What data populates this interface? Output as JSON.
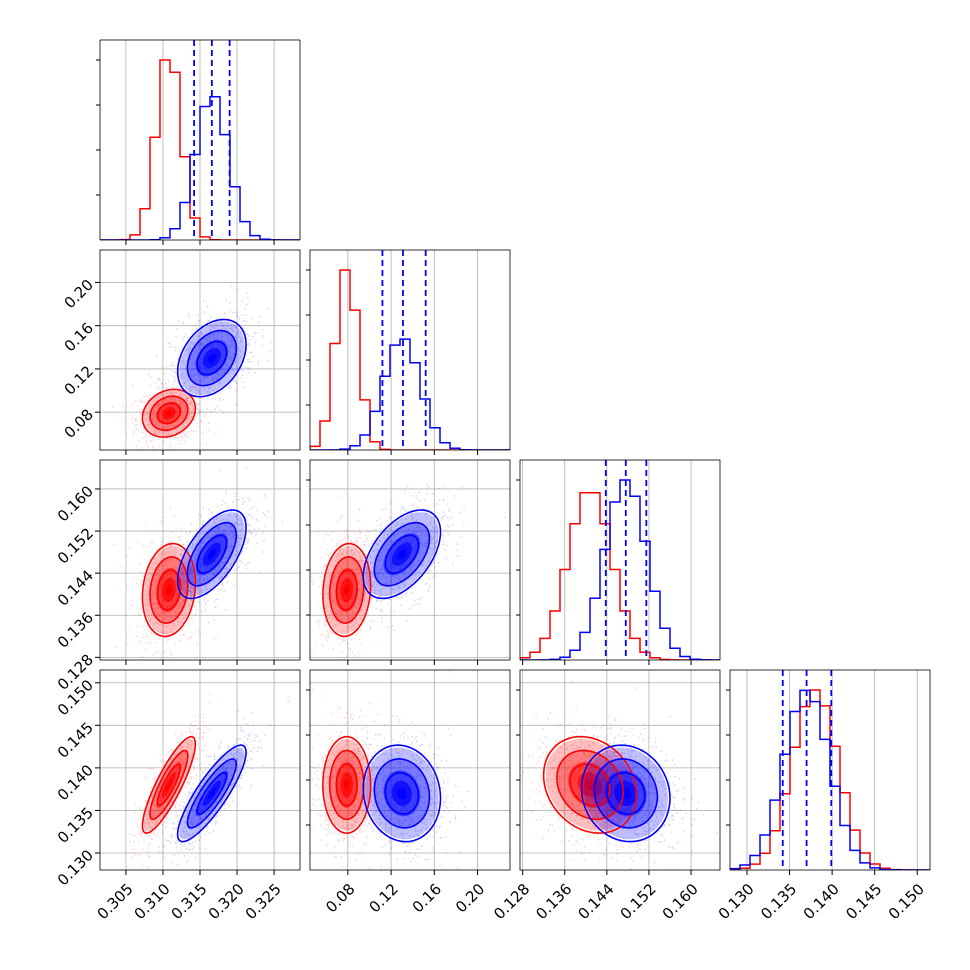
{
  "chart_data": {
    "type": "corner",
    "grid": true,
    "colors": {
      "red": "#ff0000",
      "blue": "#0000ff",
      "grid": "#b0b0b0"
    },
    "parameters": [
      {
        "ticks": [
          "0.305",
          "0.310",
          "0.315",
          "0.320",
          "0.325"
        ],
        "range": [
          0.3015,
          0.3285
        ]
      },
      {
        "ticks": [
          "0.08",
          "0.12",
          "0.16",
          "0.20"
        ],
        "range": [
          0.045,
          0.23
        ]
      },
      {
        "ticks": [
          "0.128",
          "0.136",
          "0.144",
          "0.152",
          "0.160"
        ],
        "range": [
          0.1275,
          0.1655
        ]
      },
      {
        "ticks": [
          "0.130",
          "0.135",
          "0.140",
          "0.145",
          "0.150"
        ],
        "range": [
          0.128,
          0.1515
        ]
      }
    ],
    "series": [
      {
        "color": "red",
        "mean": [
          0.3108,
          0.079,
          0.1408,
          0.138
        ],
        "sd": [
          0.0017,
          0.0105,
          0.0042,
          0.0027
        ],
        "corr": {
          "1-0": 0.2,
          "2-0": 0.15,
          "2-1": 0.1,
          "3-0": 0.85,
          "3-1": 0.0,
          "3-2": -0.2
        }
      },
      {
        "color": "blue",
        "mean": [
          0.3166,
          0.13,
          0.1476,
          0.137
        ],
        "sd": [
          0.0022,
          0.017,
          0.004,
          0.0027
        ],
        "corr": {
          "1-0": 0.35,
          "2-0": 0.6,
          "2-1": 0.5,
          "3-0": 0.85,
          "3-1": -0.1,
          "3-2": -0.1
        }
      }
    ],
    "quantiles_blue": [
      [
        0.3142,
        0.3166,
        0.319
      ],
      [
        0.112,
        0.131,
        0.152
      ],
      [
        0.1438,
        0.1476,
        0.1515
      ],
      [
        0.1342,
        0.137,
        0.1399
      ]
    ]
  }
}
